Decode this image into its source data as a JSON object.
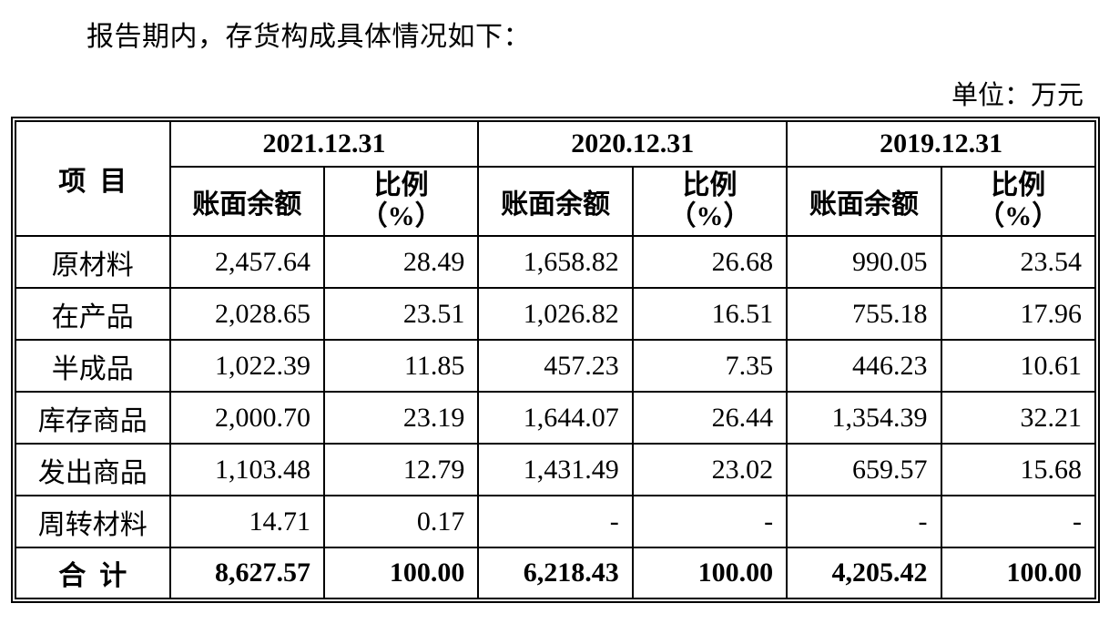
{
  "page": {
    "intro": "报告期内，存货构成具体情况如下：",
    "unit_label": "单位：万元"
  },
  "table": {
    "item_header": "项目",
    "periods": [
      "2021.12.31",
      "2020.12.31",
      "2019.12.31"
    ],
    "balance_header": "账面余额",
    "ratio_header": "比例\n（%）",
    "rows": [
      {
        "item": "原材料",
        "values": [
          "2,457.64",
          "28.49",
          "1,658.82",
          "26.68",
          "990.05",
          "23.54"
        ]
      },
      {
        "item": "在产品",
        "values": [
          "2,028.65",
          "23.51",
          "1,026.82",
          "16.51",
          "755.18",
          "17.96"
        ]
      },
      {
        "item": "半成品",
        "values": [
          "1,022.39",
          "11.85",
          "457.23",
          "7.35",
          "446.23",
          "10.61"
        ]
      },
      {
        "item": "库存商品",
        "values": [
          "2,000.70",
          "23.19",
          "1,644.07",
          "26.44",
          "1,354.39",
          "32.21"
        ]
      },
      {
        "item": "发出商品",
        "values": [
          "1,103.48",
          "12.79",
          "1,431.49",
          "23.02",
          "659.57",
          "15.68"
        ]
      },
      {
        "item": "周转材料",
        "values": [
          "14.71",
          "0.17",
          "-",
          "-",
          "-",
          "-"
        ]
      }
    ],
    "total_row": {
      "item": "合计",
      "values": [
        "8,627.57",
        "100.00",
        "6,218.43",
        "100.00",
        "4,205.42",
        "100.00"
      ]
    }
  }
}
